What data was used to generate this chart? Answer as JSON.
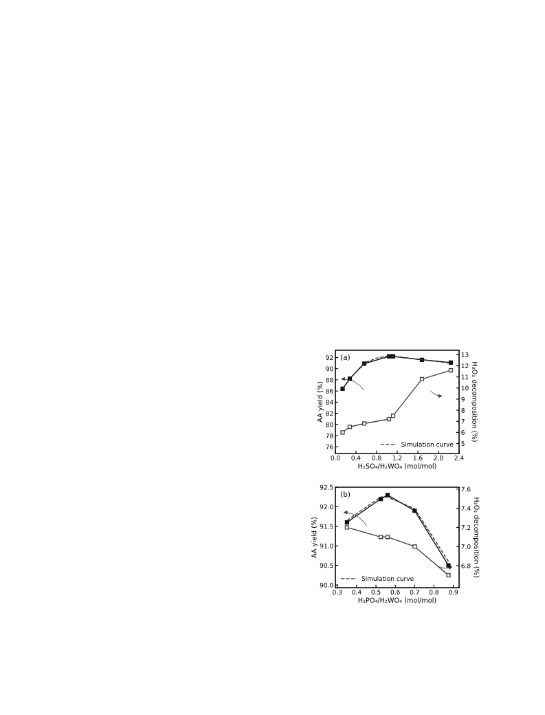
{
  "chart_data": [
    {
      "type": "line",
      "title": "(a)",
      "xlabel": "H₂SO₄/H₂WO₄ (mol/mol)",
      "ylabel": "AA yield (%)",
      "y2label": "H₂O₂ decomposition (%)",
      "x": [
        0.14,
        0.28,
        0.56,
        1.04,
        1.12,
        1.68,
        2.24
      ],
      "series": [
        {
          "color": "#111111",
          "marker": "square",
          "line_style": "solid",
          "values": [
            86.4,
            88.2,
            90.9,
            92.2,
            92.2,
            91.6,
            91.1
          ]
        },
        {
          "name": "Simulation curve",
          "color": "#333333",
          "marker": "none",
          "line_style": "dashed",
          "x": [
            0.14,
            0.28,
            0.56,
            0.8,
            1.04,
            1.12,
            1.68,
            2.24
          ],
          "values": [
            86.4,
            88.2,
            91.0,
            91.9,
            92.3,
            92.2,
            91.6,
            91.0
          ]
        },
        {
          "color": "#444444",
          "marker": "square",
          "line_style": "solid",
          "axis": "y2",
          "values": [
            6.0,
            6.5,
            6.8,
            7.2,
            7.5,
            10.8,
            11.6
          ]
        }
      ],
      "xlim": [
        0,
        2.4
      ],
      "xticks": [
        {
          "value": 0,
          "label": "0.0"
        },
        0.4,
        0.8,
        1.2,
        1.6,
        {
          "value": 2,
          "label": "2.0"
        },
        2.4
      ],
      "ylim": [
        74.8,
        93.3
      ],
      "yticks": [
        76,
        78,
        80,
        82,
        84,
        86,
        88,
        90,
        92
      ],
      "y2lim": [
        4.1,
        13.4
      ],
      "y2ticks": [
        5,
        6,
        7,
        8,
        9,
        10,
        11,
        12,
        13
      ],
      "legend": "bottom right",
      "grid": false
    },
    {
      "type": "line",
      "title": "(b)",
      "xlabel": "H₃PO₄/H₂WO₄ (mol/mol)",
      "ylabel": "AA yield (%)",
      "y2label": "H₂O₂ decomposition (%)",
      "x": [
        0.35,
        0.525,
        0.56,
        0.7,
        0.875
      ],
      "series": [
        {
          "color": "#111111",
          "marker": "square",
          "line_style": "solid",
          "values": [
            91.6,
            92.2,
            92.3,
            91.9,
            90.5
          ]
        },
        {
          "name": "Simulation curve",
          "color": "#333333",
          "marker": "none",
          "line_style": "dashed",
          "values": [
            91.65,
            92.25,
            92.25,
            91.95,
            90.6
          ]
        },
        {
          "color": "#444444",
          "marker": "square",
          "line_style": "solid",
          "axis": "y2",
          "values": [
            7.2,
            7.1,
            7.1,
            7.0,
            6.7
          ]
        }
      ],
      "xlim": [
        0.29,
        0.93
      ],
      "xticks": [
        0.3,
        0.4,
        0.5,
        0.6,
        0.7,
        0.8,
        0.9
      ],
      "ylim": [
        89.93,
        92.5
      ],
      "yticks": [
        {
          "value": 90,
          "label": "90.0"
        },
        90.5,
        {
          "value": 91,
          "label": "91.0"
        },
        91.5,
        {
          "value": 92,
          "label": "92.0"
        },
        92.5
      ],
      "y2lim": [
        6.57,
        7.62
      ],
      "y2ticks": [
        6.8,
        {
          "value": 7,
          "label": "7.0"
        },
        7.2,
        7.4,
        7.6
      ],
      "legend": "bottom left",
      "grid": false
    }
  ]
}
